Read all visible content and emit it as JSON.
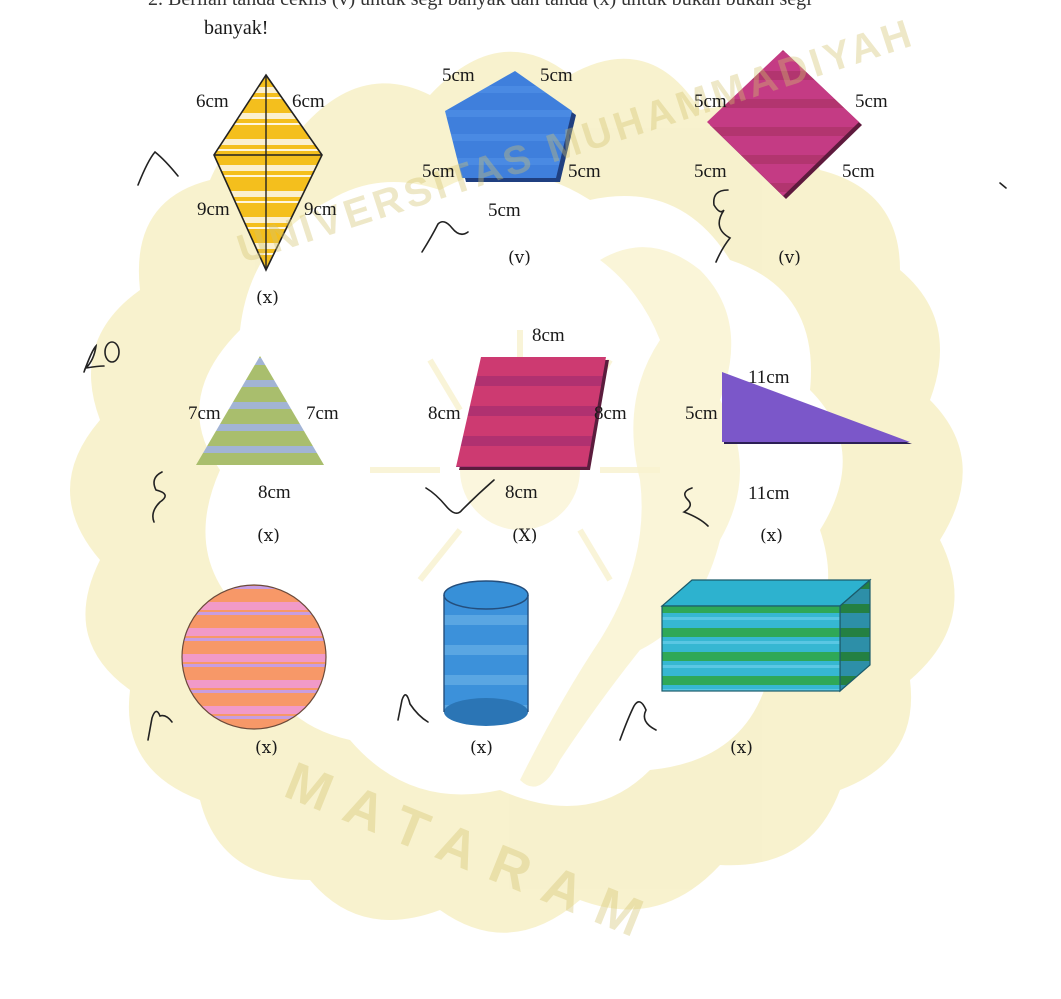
{
  "header": {
    "line1_partial": "2. Berilah tanda ceklis (v) untuk segi banyak dan tanda (x) untuk bukan bukan segi",
    "line2": "banyak!"
  },
  "watermark": {
    "top_arc": "UNIVERSITAS MUHAMMADIYAH",
    "bottom": "MATARAM"
  },
  "score": "40",
  "shapes": {
    "kite": {
      "label_tl": "6cm",
      "label_tr": "6cm",
      "label_bl": "9cm",
      "label_br": "9cm",
      "mark": "(x)"
    },
    "pentagon": {
      "label_tl": "5cm",
      "label_tr": "5cm",
      "label_ml": "5cm",
      "label_mr": "5cm",
      "label_b": "5cm",
      "mark": "(v)"
    },
    "rhombus": {
      "label_tl": "5cm",
      "label_tr": "5cm",
      "label_bl": "5cm",
      "label_br": "5cm",
      "mark": "(v)"
    },
    "triangle": {
      "label_l": "7cm",
      "label_r": "7cm",
      "label_b": "8cm",
      "mark": "(x)"
    },
    "parallelogram": {
      "label_t": "8cm",
      "label_l": "8cm",
      "label_r": "8cm",
      "label_b": "8cm",
      "mark": "(X)"
    },
    "right_triangle": {
      "label_t": "11cm",
      "label_l": "5cm",
      "label_b": "11cm",
      "mark": "(x)"
    },
    "circle": {
      "mark": "(x)"
    },
    "cylinder": {
      "mark": "(x)"
    },
    "cuboid": {
      "mark": "(x)"
    }
  },
  "colors": {
    "kite": "#f3be1e",
    "pentagon": "#3f7fdc",
    "rhombus": "#c43d88",
    "triangle": "#a8bd74",
    "parallelogram": "#c9386e",
    "right_triangle": "#7a55c8",
    "circle": "#f59a6e",
    "cylinder": "#3a8fd8",
    "cuboid": "#2fb0c8",
    "watermark": "#e9dd93"
  }
}
